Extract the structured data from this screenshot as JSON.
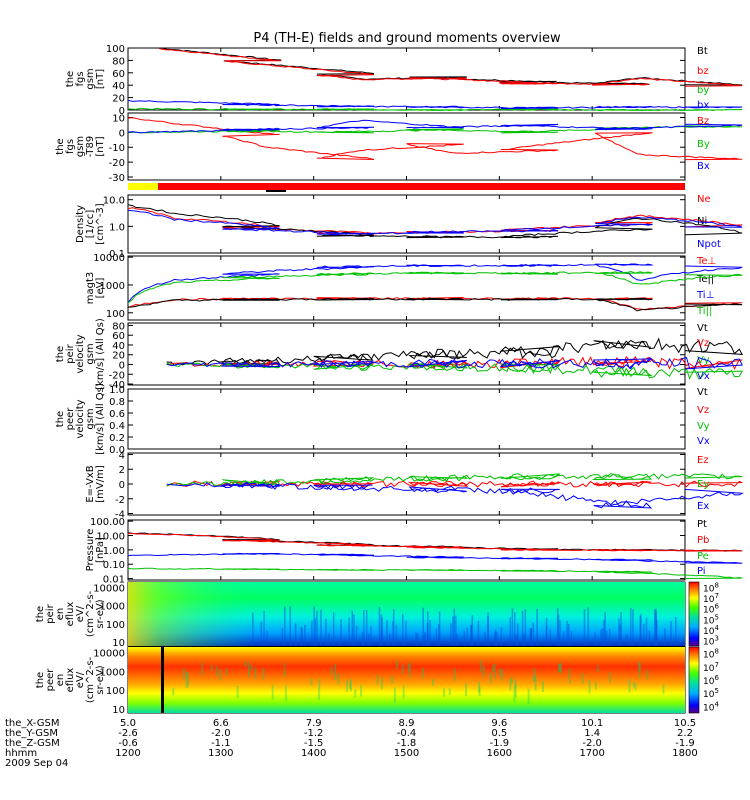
{
  "title": "P4 (TH-E) fields and ground moments overview",
  "chart_data": [
    {
      "type": "line",
      "panel": "fgs_gsm_mag",
      "ylabel_lines": [
        "the",
        "fgs",
        "gsm",
        "[nT]"
      ],
      "ylim": [
        0,
        100
      ],
      "yticks": [
        "0",
        "20",
        "40",
        "60",
        "80",
        "100"
      ],
      "series": [
        {
          "name": "Bt",
          "color": "#000000",
          "x": [
            1220,
            1300,
            1400,
            1430,
            1500,
            1600,
            1700,
            1730,
            1800
          ],
          "y": [
            100,
            80,
            59,
            50,
            53,
            45,
            42,
            52,
            40
          ]
        },
        {
          "name": "bz",
          "color": "#ff0000",
          "x": [
            1220,
            1300,
            1400,
            1430,
            1500,
            1600,
            1700,
            1730,
            1800
          ],
          "y": [
            99,
            79,
            57,
            49,
            52,
            43,
            41,
            51,
            39
          ]
        },
        {
          "name": "by",
          "color": "#00c000",
          "x": [
            1200,
            1300,
            1400,
            1500,
            1600,
            1700,
            1800
          ],
          "y": [
            2,
            1,
            1,
            0,
            1,
            0,
            0
          ]
        },
        {
          "name": "bx",
          "color": "#0000ff",
          "x": [
            1200,
            1300,
            1400,
            1500,
            1600,
            1700,
            1800
          ],
          "y": [
            15,
            9,
            6,
            5,
            3,
            5,
            4
          ]
        }
      ]
    },
    {
      "type": "line",
      "panel": "fgs_dsl_minus_t89",
      "ylabel_lines": [
        "the",
        "fgs",
        "gsm",
        "-T89",
        "[nT]"
      ],
      "ylim": [
        -32,
        13
      ],
      "yticks": [
        "-30",
        "-20",
        "-10",
        "0",
        "10"
      ],
      "series": [
        {
          "name": "Bz",
          "color": "#ff0000",
          "x": [
            1200,
            1230,
            1300,
            1330,
            1400,
            1430,
            1500,
            1530,
            1600,
            1630,
            1700,
            1730,
            1800
          ],
          "y": [
            10,
            6,
            -2,
            -10,
            -18,
            -12,
            -8,
            -14,
            -12,
            -8,
            0,
            -15,
            -18
          ]
        },
        {
          "name": "By",
          "color": "#00c000",
          "x": [
            1200,
            1300,
            1400,
            1500,
            1600,
            1700,
            1800
          ],
          "y": [
            0,
            1,
            0,
            2,
            0,
            3,
            4
          ]
        },
        {
          "name": "Bx",
          "color": "#0000ff",
          "x": [
            1200,
            1300,
            1400,
            1430,
            1500,
            1600,
            1700,
            1800
          ],
          "y": [
            0,
            2,
            3,
            8,
            3,
            5,
            2,
            5
          ]
        }
      ]
    },
    {
      "type": "line",
      "panel": "density",
      "ylabel_lines": [
        "Density",
        "[1/cc]",
        "[cm^-3]"
      ],
      "yscale": "log",
      "ylim": [
        0.1,
        15
      ],
      "yticks": [
        "0.1",
        "1.0",
        "10.0"
      ],
      "series": [
        {
          "name": "Ne",
          "color": "#ff0000",
          "x": [
            1200,
            1230,
            1300,
            1400,
            1500,
            1600,
            1700,
            1730,
            1800
          ],
          "y": [
            5,
            2,
            0.9,
            0.55,
            0.6,
            0.7,
            1.3,
            2.5,
            1.0
          ]
        },
        {
          "name": "Ni",
          "color": "#000000",
          "x": [
            1200,
            1230,
            1300,
            1400,
            1500,
            1600,
            1700,
            1730,
            1800
          ],
          "y": [
            6,
            3,
            1.0,
            0.45,
            0.4,
            0.4,
            0.8,
            2.0,
            0.5
          ]
        },
        {
          "name": "Npot",
          "color": "#0000ff",
          "x": [
            1200,
            1230,
            1300,
            1400,
            1500,
            1600,
            1700,
            1730,
            1800
          ],
          "y": [
            4,
            1.8,
            0.8,
            0.5,
            0.6,
            0.7,
            1.2,
            2.2,
            0.9
          ]
        }
      ]
    },
    {
      "type": "line",
      "panel": "temperature",
      "ylabel_lines": [
        "magt3",
        "[eV]"
      ],
      "yscale": "log",
      "ylim": [
        55,
        11000
      ],
      "yticks": [
        "100",
        "1000",
        "10000"
      ],
      "series": [
        {
          "name": "Te⊥",
          "color": "#ff0000",
          "x": [
            1200,
            1230,
            1300,
            1400,
            1500,
            1600,
            1700,
            1730,
            1800
          ],
          "y": [
            160,
            300,
            320,
            330,
            330,
            320,
            330,
            130,
            230
          ]
        },
        {
          "name": "Te||",
          "color": "#000000",
          "x": [
            1200,
            1230,
            1300,
            1400,
            1500,
            1600,
            1700,
            1730,
            1800
          ],
          "y": [
            150,
            280,
            300,
            310,
            310,
            300,
            310,
            120,
            210
          ]
        },
        {
          "name": "Ti⊥",
          "color": "#0000ff",
          "x": [
            1200,
            1230,
            1300,
            1400,
            1500,
            1600,
            1700,
            1730,
            1800
          ],
          "y": [
            250,
            1500,
            2500,
            4500,
            5000,
            5000,
            5500,
            1500,
            4500
          ]
        },
        {
          "name": "Ti||",
          "color": "#00c000",
          "x": [
            1200,
            1230,
            1300,
            1400,
            1500,
            1600,
            1700,
            1730,
            1800
          ],
          "y": [
            230,
            1200,
            1800,
            2500,
            2700,
            2600,
            2900,
            1000,
            2400
          ]
        }
      ]
    },
    {
      "type": "line",
      "panel": "peir_velocity",
      "ylabel_lines": [
        "the",
        "peir",
        "velocity",
        "gsm",
        "[km/s] (All Qs)"
      ],
      "ylim": [
        -42,
        85
      ],
      "yticks": [
        "-40",
        "-20",
        "0",
        "20",
        "40",
        "60",
        "80"
      ],
      "series": [
        {
          "name": "Vt",
          "color": "#000000",
          "x": [
            1225,
            1300,
            1400,
            1500,
            1600,
            1700,
            1800
          ],
          "y": [
            3,
            6,
            15,
            20,
            25,
            45,
            35
          ]
        },
        {
          "name": "Vz",
          "color": "#ff0000",
          "x": [
            1225,
            1300,
            1400,
            1500,
            1600,
            1700,
            1800
          ],
          "y": [
            0,
            0,
            2,
            0,
            3,
            5,
            0
          ]
        },
        {
          "name": "Vy",
          "color": "#00c000",
          "x": [
            1225,
            1300,
            1400,
            1500,
            1600,
            1700,
            1800
          ],
          "y": [
            0,
            -2,
            -5,
            -5,
            -5,
            -15,
            -20
          ]
        },
        {
          "name": "Vx",
          "color": "#0000ff",
          "x": [
            1225,
            1300,
            1400,
            1500,
            1600,
            1700,
            1800
          ],
          "y": [
            0,
            0,
            1,
            2,
            2,
            3,
            2
          ]
        }
      ]
    },
    {
      "type": "line",
      "panel": "peer_velocity",
      "ylabel_lines": [
        "the",
        "peer",
        "velocity",
        "gsm",
        "[km/s] (All Qs)"
      ],
      "ylim": [
        0,
        1.0
      ],
      "yticks": [
        "0.0",
        "0.2",
        "0.4",
        "0.6",
        "0.8",
        "1.0"
      ],
      "series": [
        {
          "name": "Vt",
          "color": "#000000"
        },
        {
          "name": "Vz",
          "color": "#ff0000"
        },
        {
          "name": "Vy",
          "color": "#00c000"
        },
        {
          "name": "Vx",
          "color": "#0000ff"
        }
      ]
    },
    {
      "type": "line",
      "panel": "e_field",
      "ylabel_lines": [
        "E=-VxB",
        "[mV/m]"
      ],
      "ylim": [
        -4.2,
        4.2
      ],
      "yticks": [
        "-4",
        "-2",
        "0",
        "2",
        "4"
      ],
      "series": [
        {
          "name": "Ez",
          "color": "#ff0000",
          "x": [
            1225,
            1800
          ],
          "y": [
            0,
            0
          ]
        },
        {
          "name": "Ey",
          "color": "#00c000",
          "x": [
            1225,
            1400,
            1600,
            1800
          ],
          "y": [
            0,
            0.5,
            1,
            1
          ]
        },
        {
          "name": "Ex",
          "color": "#0000ff",
          "x": [
            1225,
            1400,
            1600,
            1700,
            1800
          ],
          "y": [
            0,
            -0.5,
            -1,
            -3,
            -1
          ]
        }
      ]
    },
    {
      "type": "line",
      "panel": "pressure",
      "ylabel_lines": [
        "Pressure",
        "[nPa]"
      ],
      "yscale": "log",
      "ylim": [
        0.008,
        120
      ],
      "yticks": [
        "0.01",
        "0.10",
        "1.00",
        "10.00",
        "100.00"
      ],
      "series": [
        {
          "name": "Pt",
          "color": "#000000",
          "x": [
            1200,
            1300,
            1400,
            1500,
            1600,
            1700,
            1800
          ],
          "y": [
            15,
            5,
            2.3,
            1.6,
            1.1,
            1.0,
            0.9
          ]
        },
        {
          "name": "Pb",
          "color": "#ff0000",
          "x": [
            1200,
            1300,
            1400,
            1500,
            1600,
            1700,
            1800
          ],
          "y": [
            14,
            4.6,
            2.1,
            1.5,
            1.0,
            0.95,
            0.85
          ]
        },
        {
          "name": "Pe",
          "color": "#00c000",
          "x": [
            1200,
            1300,
            1400,
            1500,
            1600,
            1700,
            1800
          ],
          "y": [
            0.05,
            0.045,
            0.04,
            0.04,
            0.035,
            0.03,
            0.01
          ]
        },
        {
          "name": "Pi",
          "color": "#0000ff",
          "x": [
            1200,
            1300,
            1400,
            1500,
            1600,
            1700,
            1800
          ],
          "y": [
            0.4,
            0.55,
            0.45,
            0.3,
            0.25,
            0.2,
            0.12
          ]
        }
      ]
    },
    {
      "type": "heatmap",
      "panel": "peir_en_eflux",
      "ylabel_lines": [
        "the",
        "peir",
        "en",
        "eflux",
        "eV/",
        "(cm^2-s-",
        "sr-eV)"
      ],
      "yscale": "log",
      "ylim": [
        6,
        20000
      ],
      "yticks": [
        "10",
        "100",
        "1000",
        "10000"
      ],
      "colorbar_ticks": [
        "10^3",
        "10^4",
        "10^5",
        "10^6",
        "10^7",
        "10^8"
      ]
    },
    {
      "type": "heatmap",
      "panel": "peer_en_eflux",
      "ylabel_lines": [
        "the",
        "peer",
        "en",
        "eflux",
        "eV/",
        "(cm^2-s-",
        "sr-eV)"
      ],
      "yscale": "log",
      "ylim": [
        6,
        20000
      ],
      "yticks": [
        "10",
        "100",
        "1000",
        "10000"
      ],
      "colorbar_ticks": [
        "10^4",
        "10^5",
        "10^6",
        "10^7",
        "10^8"
      ]
    }
  ],
  "xaxis": {
    "labels": [
      "the_X-GSM",
      "the_Y-GSM",
      "the_Z-GSM",
      "hhmm",
      "2009 Sep 04"
    ],
    "ticks": [
      {
        "x": "5.0",
        "y": "-2.6",
        "z": "-0.6",
        "t": "1200"
      },
      {
        "x": "6.6",
        "y": "-2.0",
        "z": "-1.1",
        "t": "1300"
      },
      {
        "x": "7.9",
        "y": "-1.2",
        "z": "-1.5",
        "t": "1400"
      },
      {
        "x": "8.9",
        "y": "-0.4",
        "z": "-1.8",
        "t": "1500"
      },
      {
        "x": "9.6",
        "y": "0.5",
        "z": "-1.9",
        "t": "1600"
      },
      {
        "x": "10.1",
        "y": "1.4",
        "z": "-2.0",
        "t": "1700"
      },
      {
        "x": "10.5",
        "y": "2.2",
        "z": "-1.9",
        "t": "1800"
      }
    ]
  },
  "colors": {
    "red": "#ff0000",
    "green": "#00c000",
    "blue": "#0000ff",
    "yellow": "#ffff00",
    "black": "#000000"
  }
}
